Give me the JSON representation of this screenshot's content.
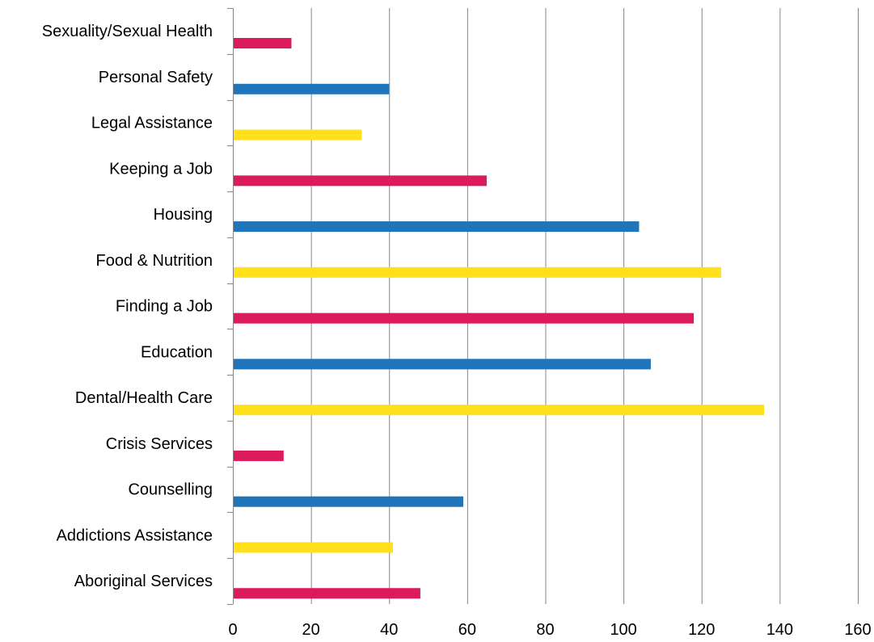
{
  "chart_data": {
    "type": "bar",
    "orientation": "horizontal",
    "title": "",
    "xlabel": "",
    "ylabel": "",
    "xlim": [
      0,
      160
    ],
    "x_ticks": [
      0,
      20,
      40,
      60,
      80,
      100,
      120,
      140,
      160
    ],
    "grid": "vertical",
    "legend": "none",
    "categories": [
      "Sexuality/Sexual Health",
      "Personal Safety",
      "Legal Assistance",
      "Keeping a Job",
      "Housing",
      "Food & Nutrition",
      "Finding a Job",
      "Education",
      "Dental/Health Care",
      "Crisis Services",
      "Counselling",
      "Addictions Assistance",
      "Aboriginal Services"
    ],
    "values": [
      15,
      40,
      33,
      65,
      104,
      125,
      118,
      107,
      136,
      13,
      59,
      41,
      48
    ],
    "bar_colors": [
      "#dc1c5a",
      "#1f74ba",
      "#ffe01a",
      "#dc1c5a",
      "#1f74ba",
      "#ffe01a",
      "#dc1c5a",
      "#1f74ba",
      "#ffe01a",
      "#dc1c5a",
      "#1f74ba",
      "#ffe01a",
      "#dc1c5a"
    ],
    "gridline_color": "#868686",
    "axis_color": "#868686"
  }
}
